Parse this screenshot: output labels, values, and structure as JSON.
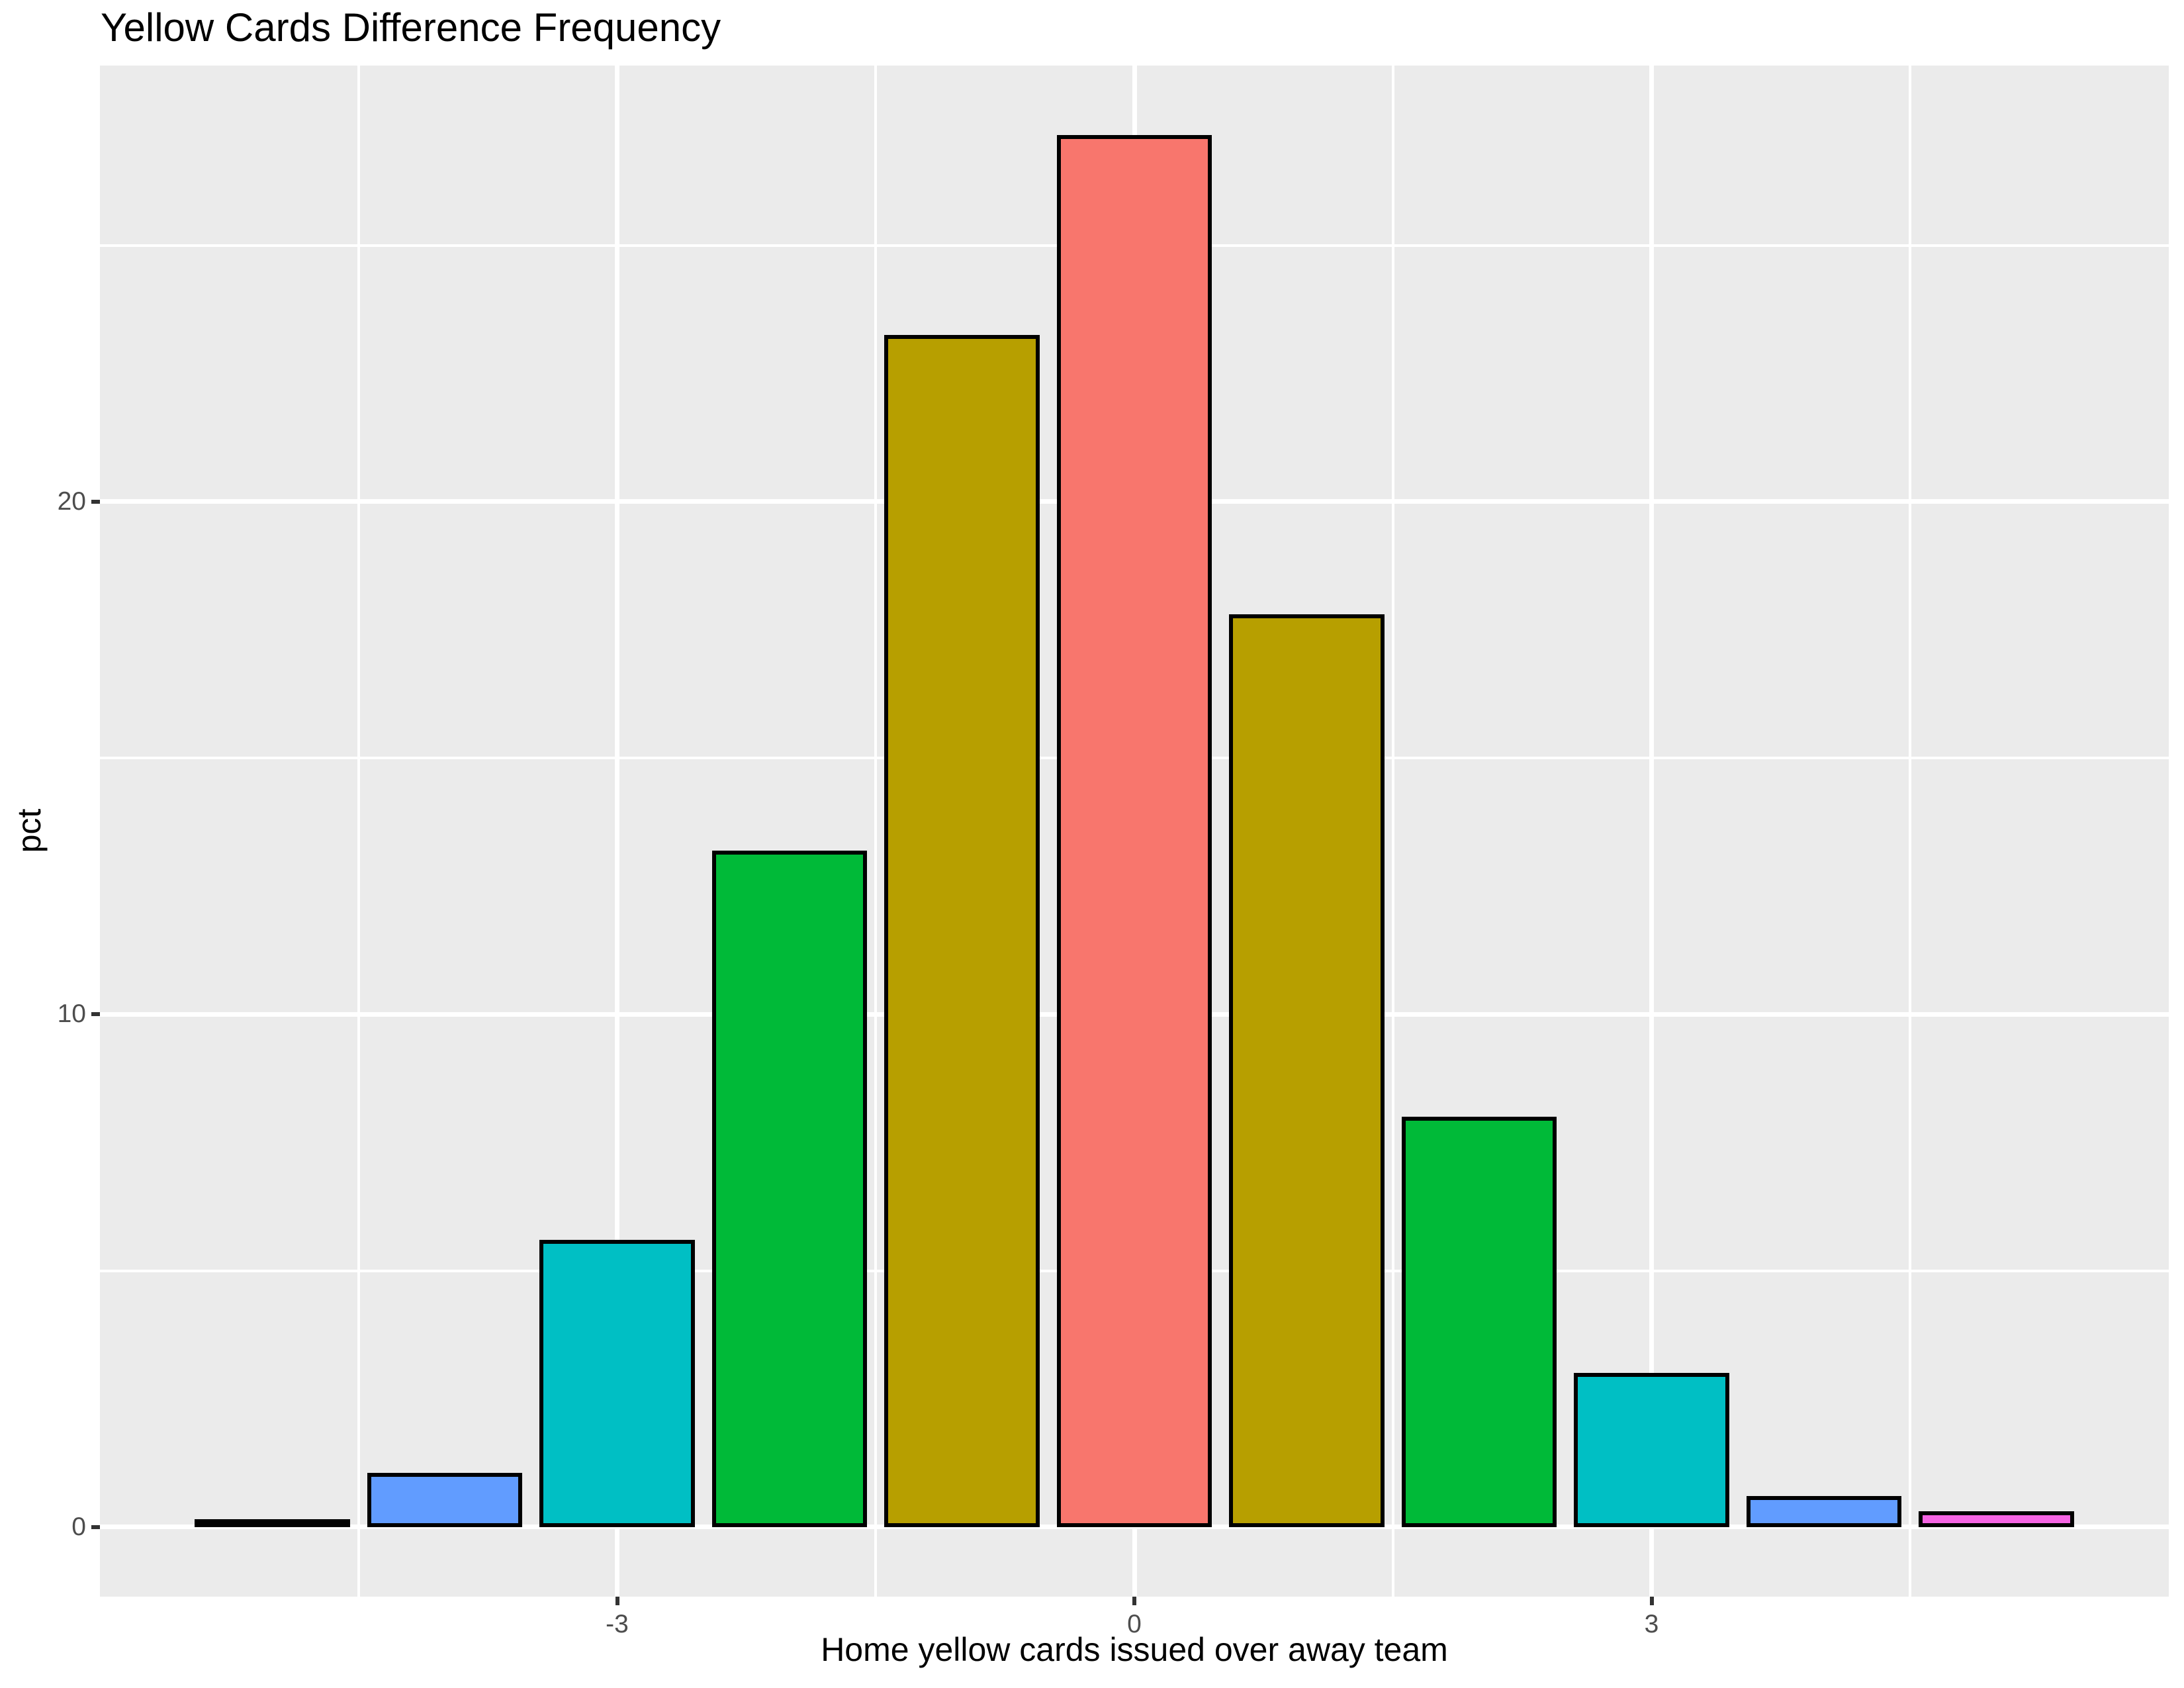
{
  "chart_data": {
    "type": "bar",
    "title": "Yellow Cards Difference Frequency",
    "xlabel": "Home yellow cards issued over away team",
    "ylabel": "pct",
    "x": [
      -5,
      -4,
      -3,
      -2,
      -1,
      0,
      1,
      2,
      3,
      4,
      5
    ],
    "values": [
      0.15,
      1.05,
      5.6,
      13.2,
      23.25,
      27.15,
      17.8,
      8.0,
      3.0,
      0.6,
      0.3
    ],
    "bar_colors": [
      "#F564E3",
      "#619CFF",
      "#00BFC4",
      "#00BA38",
      "#B79F00",
      "#F8766D",
      "#B79F00",
      "#00BA38",
      "#00BFC4",
      "#619CFF",
      "#F564E3"
    ],
    "bar_width": 0.9,
    "xlim": [
      -6,
      6
    ],
    "ylim": [
      -1.36,
      28.51
    ],
    "x_major_ticks": [
      -3,
      0,
      3
    ],
    "x_tick_labels": [
      "-3",
      "0",
      "3"
    ],
    "x_minor_gridlines": [
      -4.5,
      -1.5,
      1.5,
      4.5
    ],
    "y_major_ticks": [
      0,
      10,
      20
    ],
    "y_tick_labels": [
      "0",
      "10",
      "20"
    ],
    "y_minor_gridlines": [
      5,
      15,
      25
    ],
    "grid": true,
    "legend_position": "none",
    "style": {
      "panel_bg": "#EBEBEB",
      "gridline_color": "#FFFFFF",
      "bar_border_color": "#000000",
      "tick_mark_color": "#333333",
      "tick_label_color": "#4D4D4D",
      "title_color": "#000000",
      "axis_title_color": "#000000"
    }
  }
}
